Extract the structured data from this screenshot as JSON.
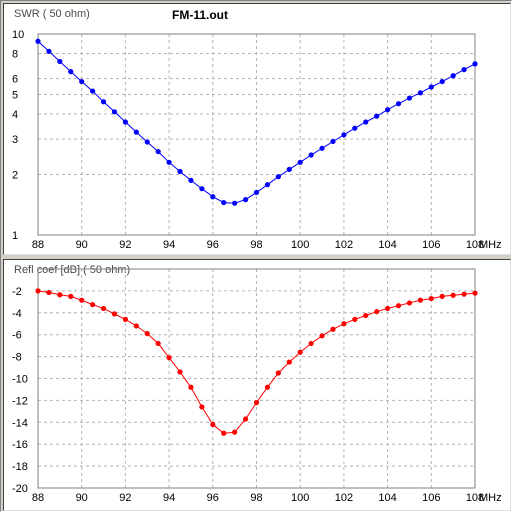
{
  "file_name": "FM-11.out",
  "x_unit": "MHz",
  "chart_data": [
    {
      "type": "line",
      "title": "SWR ( 50 ohm)",
      "xlabel": "MHz",
      "ylabel": "",
      "xlim": [
        88,
        108
      ],
      "ylim": [
        1,
        10
      ],
      "y_scale": "log",
      "grid": true,
      "x_ticks": [
        88,
        90,
        92,
        94,
        96,
        98,
        100,
        102,
        104,
        106,
        108
      ],
      "y_ticks": [
        1,
        2,
        3,
        4,
        5,
        6,
        8,
        10
      ],
      "color": "#0000ff",
      "x": [
        88.0,
        88.5,
        89.0,
        89.5,
        90.0,
        90.5,
        91.0,
        91.5,
        92.0,
        92.5,
        93.0,
        93.5,
        94.0,
        94.5,
        95.0,
        95.5,
        96.0,
        96.5,
        97.0,
        97.5,
        98.0,
        98.5,
        99.0,
        99.5,
        100.0,
        100.5,
        101.0,
        101.5,
        102.0,
        102.5,
        103.0,
        103.5,
        104.0,
        104.5,
        105.0,
        105.5,
        106.0,
        106.5,
        107.0,
        107.5,
        108.0
      ],
      "values": [
        9.2,
        8.2,
        7.3,
        6.5,
        5.8,
        5.2,
        4.6,
        4.1,
        3.65,
        3.25,
        2.9,
        2.6,
        2.3,
        2.07,
        1.87,
        1.7,
        1.55,
        1.45,
        1.44,
        1.5,
        1.63,
        1.78,
        1.95,
        2.12,
        2.3,
        2.5,
        2.7,
        2.92,
        3.15,
        3.4,
        3.65,
        3.9,
        4.2,
        4.5,
        4.8,
        5.1,
        5.45,
        5.8,
        6.2,
        6.65,
        7.1
      ]
    },
    {
      "type": "line",
      "title": "Refl coef [dB] ( 50 ohm)",
      "xlabel": "MHz",
      "ylabel": "",
      "xlim": [
        88,
        108
      ],
      "ylim": [
        -20,
        0
      ],
      "grid": true,
      "x_ticks": [
        88,
        90,
        92,
        94,
        96,
        98,
        100,
        102,
        104,
        106,
        108
      ],
      "y_ticks": [
        -2,
        -4,
        -6,
        -8,
        -10,
        -12,
        -14,
        -16,
        -18,
        -20
      ],
      "color": "#ff0000",
      "x": [
        88.0,
        88.5,
        89.0,
        89.5,
        90.0,
        90.5,
        91.0,
        91.5,
        92.0,
        92.5,
        93.0,
        93.5,
        94.0,
        94.5,
        95.0,
        95.5,
        96.0,
        96.5,
        97.0,
        97.5,
        98.0,
        98.5,
        99.0,
        99.5,
        100.0,
        100.5,
        101.0,
        101.5,
        102.0,
        102.5,
        103.0,
        103.5,
        104.0,
        104.5,
        105.0,
        105.5,
        106.0,
        106.5,
        107.0,
        107.5,
        108.0
      ],
      "values": [
        -2.0,
        -2.15,
        -2.35,
        -2.5,
        -2.85,
        -3.25,
        -3.6,
        -4.1,
        -4.6,
        -5.2,
        -5.9,
        -6.8,
        -8.1,
        -9.4,
        -10.8,
        -12.6,
        -14.2,
        -15.0,
        -14.9,
        -13.7,
        -12.2,
        -10.8,
        -9.5,
        -8.5,
        -7.6,
        -6.8,
        -6.1,
        -5.5,
        -5.0,
        -4.6,
        -4.25,
        -3.9,
        -3.6,
        -3.35,
        -3.1,
        -2.85,
        -2.7,
        -2.5,
        -2.4,
        -2.3,
        -2.2
      ]
    }
  ]
}
